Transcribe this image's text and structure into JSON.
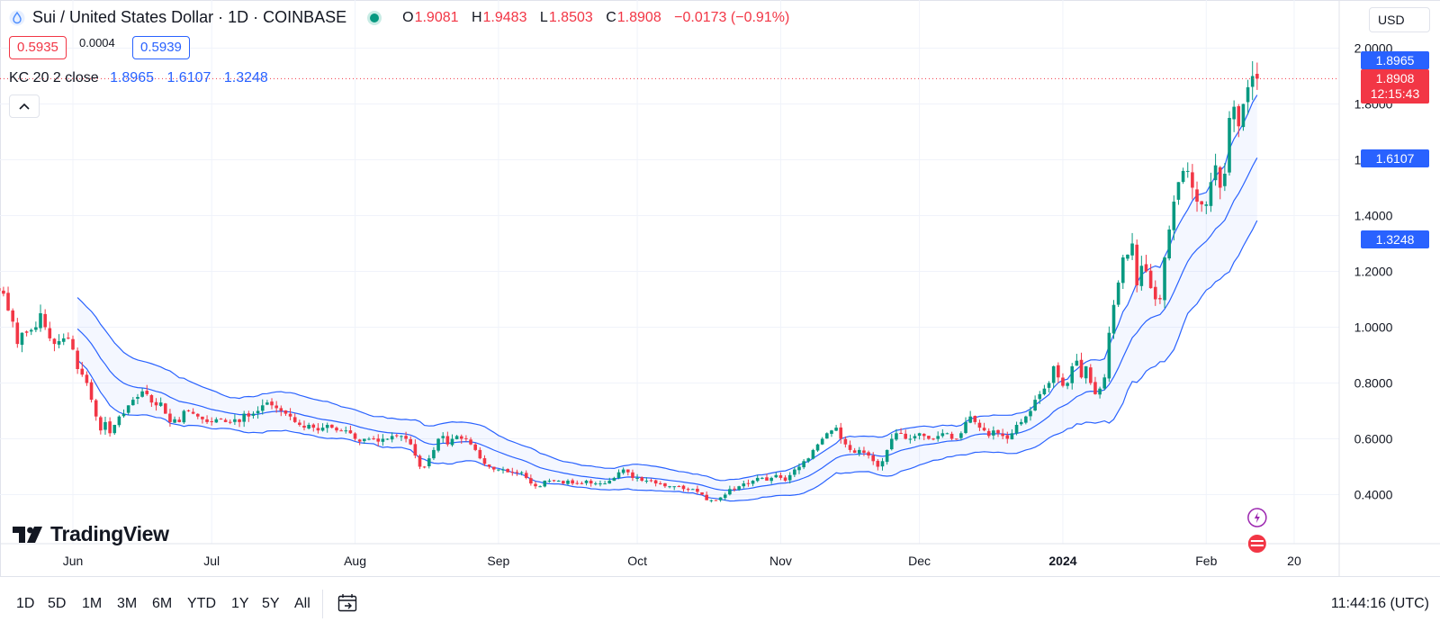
{
  "header": {
    "symbol_title": "Sui / United States Dollar · 1D · COINBASE",
    "ohlc": [
      {
        "key": "O",
        "value": "1.9081"
      },
      {
        "key": "H",
        "value": "1.9483"
      },
      {
        "key": "L",
        "value": "1.8503"
      },
      {
        "key": "C",
        "value": "1.8908"
      }
    ],
    "change": "−0.0173 (−0.91%)",
    "bid": "0.5935",
    "spread": "0.0004",
    "ask": "0.5939",
    "currency": "USD",
    "colors": {
      "up": "#089981",
      "down": "#f23645",
      "accent": "#2962ff"
    }
  },
  "indicator": {
    "name": "KC 20 2 close",
    "values": [
      "1.8965",
      "1.6107",
      "1.3248"
    ]
  },
  "price_tags": {
    "upper": "1.8965",
    "last_price": "1.8908",
    "countdown": "12:15:43",
    "middle": "1.6107",
    "lower": "1.3248"
  },
  "logo_text": "TradingView",
  "footer": {
    "ranges": [
      "1D",
      "5D",
      "1M",
      "3M",
      "6M",
      "YTD",
      "1Y",
      "5Y",
      "All"
    ],
    "clock": "11:44:16 (UTC)"
  },
  "chart_data": {
    "type": "candlestick",
    "title": "Sui / United States Dollar · 1D · COINBASE",
    "y_ticks": [
      "0.4000",
      "0.6000",
      "0.8000",
      "1.0000",
      "1.2000",
      "1.4000",
      "1.6000",
      "1.8000",
      "2.0000"
    ],
    "ylim": [
      0.2,
      2.15
    ],
    "x_ticks": [
      {
        "label": "Jun",
        "day": 19
      },
      {
        "label": "Jul",
        "day": 49
      },
      {
        "label": "Aug",
        "day": 80
      },
      {
        "label": "Sep",
        "day": 111
      },
      {
        "label": "Oct",
        "day": 141
      },
      {
        "label": "Nov",
        "day": 172
      },
      {
        "label": "Dec",
        "day": 202
      },
      {
        "label": "2024",
        "day": 233
      },
      {
        "label": "Feb",
        "day": 264
      },
      {
        "label": "20",
        "day": 283
      }
    ],
    "close_series": {
      "start_day": 1,
      "closes": [
        1.15,
        1.14,
        1.13,
        1.12,
        1.06,
        1.02,
        0.94,
        0.98,
        0.98,
        0.99,
        1.0,
        1.05,
        1.0,
        0.96,
        0.94,
        0.95,
        0.96,
        0.96,
        0.92,
        0.85,
        0.83,
        0.8,
        0.74,
        0.68,
        0.63,
        0.66,
        0.62,
        0.65,
        0.68,
        0.69,
        0.72,
        0.74,
        0.75,
        0.77,
        0.76,
        0.73,
        0.72,
        0.73,
        0.69,
        0.66,
        0.67,
        0.66,
        0.7,
        0.7,
        0.69,
        0.68,
        0.67,
        0.66,
        0.66,
        0.67,
        0.67,
        0.66,
        0.66,
        0.67,
        0.66,
        0.69,
        0.68,
        0.69,
        0.7,
        0.72,
        0.73,
        0.72,
        0.71,
        0.7,
        0.69,
        0.68,
        0.66,
        0.65,
        0.64,
        0.65,
        0.64,
        0.63,
        0.64,
        0.65,
        0.64,
        0.63,
        0.63,
        0.63,
        0.62,
        0.6,
        0.59,
        0.6,
        0.6,
        0.6,
        0.59,
        0.6,
        0.6,
        0.61,
        0.61,
        0.61,
        0.6,
        0.58,
        0.54,
        0.5,
        0.5,
        0.53,
        0.56,
        0.6,
        0.61,
        0.58,
        0.6,
        0.61,
        0.6,
        0.6,
        0.58,
        0.56,
        0.53,
        0.51,
        0.5,
        0.49,
        0.49,
        0.49,
        0.48,
        0.48,
        0.48,
        0.48,
        0.46,
        0.44,
        0.43,
        0.43,
        0.45,
        0.45,
        0.45,
        0.45,
        0.44,
        0.45,
        0.44,
        0.44,
        0.44,
        0.45,
        0.44,
        0.44,
        0.44,
        0.44,
        0.45,
        0.46,
        0.48,
        0.49,
        0.48,
        0.46,
        0.46,
        0.45,
        0.45,
        0.45,
        0.44,
        0.44,
        0.43,
        0.43,
        0.43,
        0.43,
        0.42,
        0.42,
        0.42,
        0.41,
        0.4,
        0.38,
        0.38,
        0.38,
        0.39,
        0.4,
        0.42,
        0.42,
        0.43,
        0.44,
        0.44,
        0.45,
        0.46,
        0.46,
        0.45,
        0.46,
        0.47,
        0.46,
        0.45,
        0.47,
        0.49,
        0.5,
        0.52,
        0.53,
        0.56,
        0.58,
        0.6,
        0.62,
        0.63,
        0.64,
        0.6,
        0.58,
        0.56,
        0.55,
        0.56,
        0.55,
        0.54,
        0.52,
        0.5,
        0.52,
        0.56,
        0.6,
        0.62,
        0.62,
        0.6,
        0.6,
        0.61,
        0.62,
        0.61,
        0.6,
        0.6,
        0.61,
        0.62,
        0.62,
        0.6,
        0.6,
        0.62,
        0.66,
        0.68,
        0.66,
        0.64,
        0.63,
        0.61,
        0.63,
        0.62,
        0.61,
        0.6,
        0.62,
        0.65,
        0.66,
        0.68,
        0.7,
        0.74,
        0.76,
        0.78,
        0.8,
        0.86,
        0.82,
        0.79,
        0.8,
        0.86,
        0.88,
        0.82,
        0.86,
        0.8,
        0.76,
        0.78,
        0.82,
        0.98,
        1.08,
        1.16,
        1.25,
        1.26,
        1.3,
        1.15,
        1.22,
        1.2,
        1.14,
        1.1,
        1.1,
        1.25,
        1.35,
        1.45,
        1.52,
        1.56,
        1.56,
        1.5,
        1.45,
        1.44,
        1.44,
        1.52,
        1.58,
        1.5,
        1.55,
        1.75,
        1.79,
        1.72,
        1.8,
        1.86,
        1.9,
        1.89
      ]
    },
    "last_price": 1.8908,
    "channel": {
      "name": "KC 20 2 close",
      "upper": 1.8965,
      "middle": 1.6107,
      "lower": 1.3248
    }
  }
}
